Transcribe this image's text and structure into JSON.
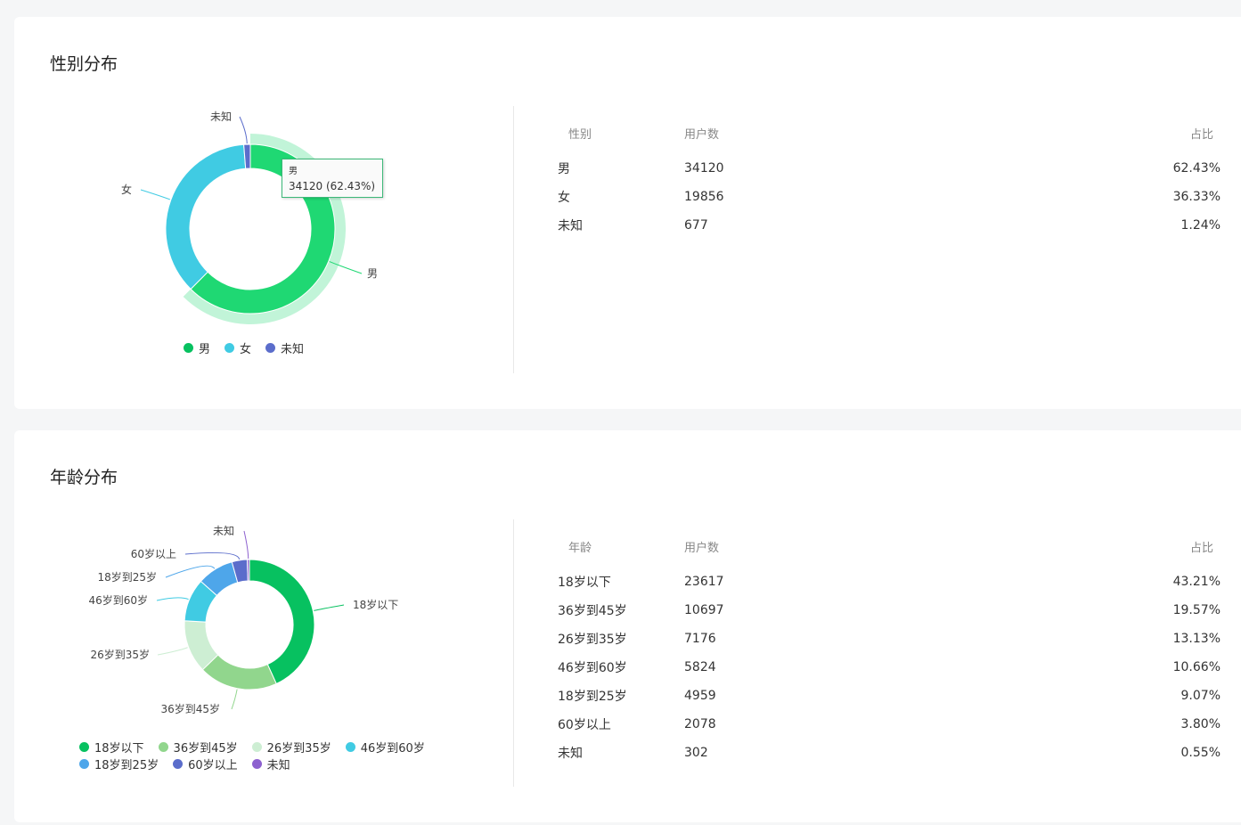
{
  "gender": {
    "title": "性别分布",
    "table_headers": [
      "性别",
      "用户数",
      "占比"
    ],
    "tooltip": {
      "name": "男",
      "value": "34120 (62.43%)"
    },
    "chart_data": {
      "type": "pie",
      "categories": [
        "男",
        "女",
        "未知"
      ],
      "values": [
        34120,
        19856,
        677
      ],
      "percents": [
        "62.43%",
        "36.33%",
        "1.24%"
      ],
      "colors": [
        "#1fd873",
        "#40cbe3",
        "#5b6dcb"
      ],
      "legend_colors": [
        "#07c160",
        "#40cbe3",
        "#5b6dcb"
      ],
      "highlighted": "男",
      "legend": "bottom"
    }
  },
  "age": {
    "title": "年龄分布",
    "table_headers": [
      "年龄",
      "用户数",
      "占比"
    ],
    "chart_data": {
      "type": "pie",
      "categories": [
        "18岁以下",
        "36岁到45岁",
        "26岁到35岁",
        "46岁到60岁",
        "18岁到25岁",
        "60岁以上",
        "未知"
      ],
      "values": [
        23617,
        10697,
        7176,
        5824,
        4959,
        2078,
        302
      ],
      "percents": [
        "43.21%",
        "19.57%",
        "13.13%",
        "10.66%",
        "9.07%",
        "3.80%",
        "0.55%"
      ],
      "colors": [
        "#07c160",
        "#91d68d",
        "#cdeed3",
        "#40cbe3",
        "#4ea6ea",
        "#5b6dcb",
        "#8d61cf"
      ],
      "legend": "bottom"
    }
  }
}
